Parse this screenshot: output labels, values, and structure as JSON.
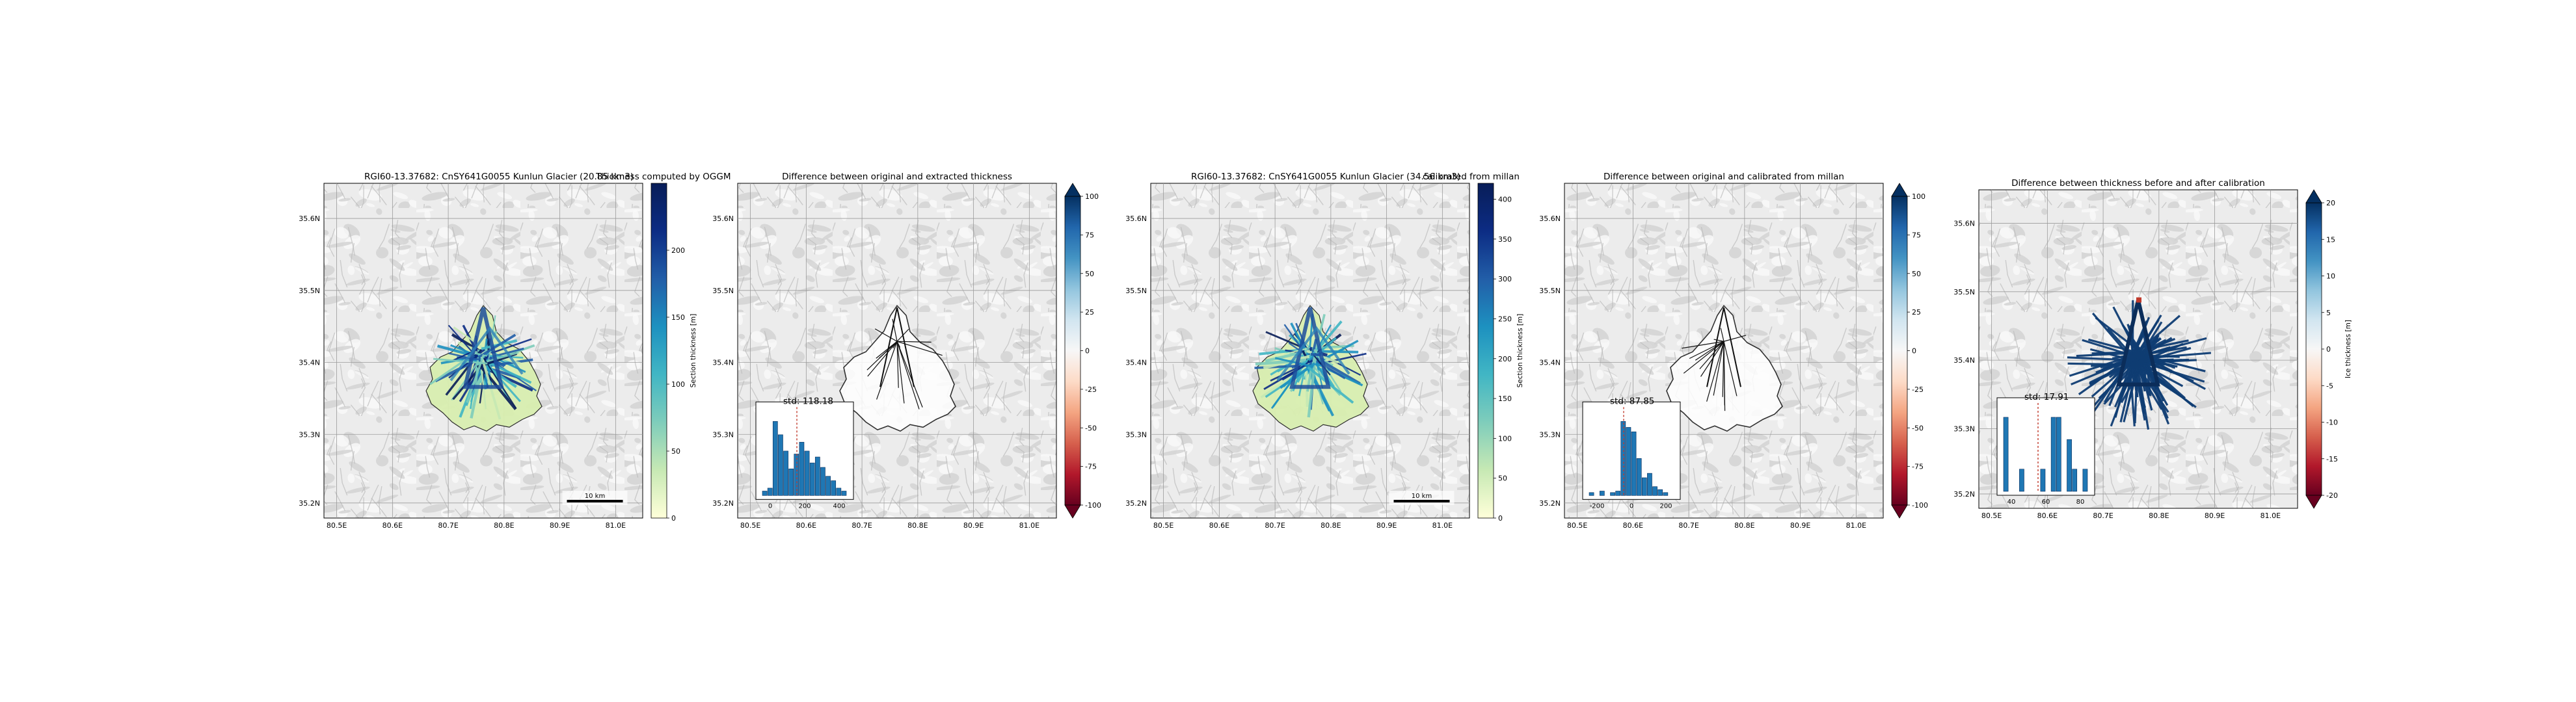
{
  "panels": [
    {
      "title": "RGI60-13.37682: CnSY641G0055 Kunlun Glacier (20.85 km3)",
      "overlay_label": "Thickness computed by OGGM",
      "map_type": "thickness",
      "colorbar": {
        "label": "Section thickness [m]",
        "ticks": [
          "0",
          "50",
          "100",
          "150",
          "200"
        ],
        "range": [
          0,
          250
        ],
        "colors": [
          "#ffffd9",
          "#c7e9b4",
          "#7fcdbb",
          "#41b6c4",
          "#1d91c0",
          "#225ea8",
          "#0c2c84",
          "#081d58"
        ],
        "extend": false
      },
      "scalebar": "10 km",
      "inset": null
    },
    {
      "title": "Difference between original and extracted thickness",
      "overlay_label": "",
      "map_type": "outline",
      "colorbar": {
        "label": "",
        "ticks": [
          "100",
          "75",
          "50",
          "25",
          "0",
          "-25",
          "-50",
          "-75",
          "-100"
        ],
        "range": [
          -100,
          100
        ],
        "colors": [
          "#67001f",
          "#b2182b",
          "#d6604d",
          "#f4a582",
          "#fddbc7",
          "#f7f7f7",
          "#d1e5f0",
          "#92c5de",
          "#4393c3",
          "#2166ac",
          "#053061"
        ],
        "extend": true
      },
      "scalebar": "",
      "inset": {
        "label": "std: 118.18",
        "xticks": [
          "0",
          "200",
          "400"
        ],
        "heights": [
          0.06,
          0.1,
          1.0,
          0.82,
          0.6,
          0.36,
          0.56,
          0.72,
          0.6,
          0.44,
          0.52,
          0.38,
          0.26,
          0.2,
          0.1,
          0.06
        ]
      }
    },
    {
      "title": "RGI60-13.37682: CnSY641G0055 Kunlun Glacier (34.56 km3)",
      "overlay_label": "calibrated from millan",
      "map_type": "thickness",
      "colorbar": {
        "label": "Section thickness [m]",
        "ticks": [
          "0",
          "50",
          "100",
          "150",
          "200",
          "250",
          "300",
          "350",
          "400"
        ],
        "range": [
          0,
          420
        ],
        "colors": [
          "#ffffd9",
          "#c7e9b4",
          "#7fcdbb",
          "#41b6c4",
          "#1d91c0",
          "#225ea8",
          "#0c2c84",
          "#081d58"
        ],
        "extend": false
      },
      "scalebar": "10 km",
      "inset": null
    },
    {
      "title": "Difference between original and calibrated from millan",
      "overlay_label": "",
      "map_type": "outline",
      "colorbar": {
        "label": "",
        "ticks": [
          "100",
          "75",
          "50",
          "25",
          "0",
          "-25",
          "-50",
          "-75",
          "-100"
        ],
        "range": [
          -100,
          100
        ],
        "colors": [
          "#67001f",
          "#b2182b",
          "#d6604d",
          "#f4a582",
          "#fddbc7",
          "#f7f7f7",
          "#d1e5f0",
          "#92c5de",
          "#4393c3",
          "#2166ac",
          "#053061"
        ],
        "extend": true
      },
      "scalebar": "",
      "inset": {
        "label": "std: 87.85",
        "xticks": [
          "-200",
          "0",
          "200"
        ],
        "heights": [
          0.04,
          0.0,
          0.06,
          0.0,
          0.04,
          0.06,
          1.0,
          0.92,
          0.86,
          0.5,
          0.24,
          0.3,
          0.12,
          0.08,
          0.04,
          0.0
        ]
      }
    },
    {
      "title": "Difference between thickness before and after calibration",
      "overlay_label": "",
      "map_type": "diffcal",
      "colorbar": {
        "label": "Ice thickness [m]",
        "ticks": [
          "20",
          "15",
          "10",
          "5",
          "0",
          "-5",
          "-10",
          "-15",
          "-20"
        ],
        "range": [
          -20,
          20
        ],
        "colors": [
          "#67001f",
          "#b2182b",
          "#d6604d",
          "#f4a582",
          "#fddbc7",
          "#f7f7f7",
          "#d1e5f0",
          "#92c5de",
          "#4393c3",
          "#2166ac",
          "#053061"
        ],
        "extend": true
      },
      "scalebar": "",
      "inset": {
        "label": "std: 17.91",
        "xticks": [
          "40",
          "60",
          "80"
        ],
        "heights": [
          1.0,
          0.0,
          0.0,
          0.3,
          0.0,
          0.0,
          0.0,
          0.3,
          0.0,
          1.0,
          1.0,
          0.0,
          0.7,
          0.3,
          0.0,
          0.3
        ]
      }
    }
  ],
  "axes": {
    "lat_labels": [
      "35.6N",
      "35.5N",
      "35.4N",
      "35.3N",
      "35.2N"
    ],
    "lon_labels": [
      "80.5E",
      "80.6E",
      "80.7E",
      "80.8E",
      "80.9E",
      "81.0E"
    ]
  }
}
